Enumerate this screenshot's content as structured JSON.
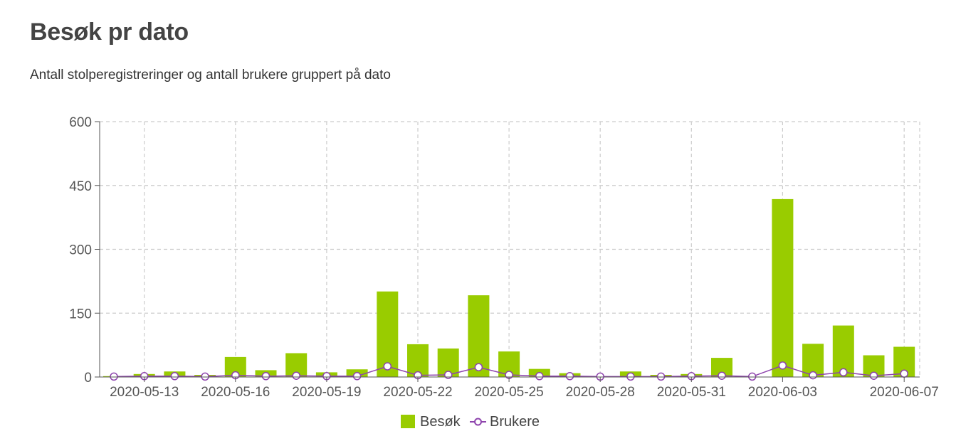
{
  "page": {
    "title": "Besøk pr dato",
    "subtitle": "Antall stolperegistreringer og antall brukere gruppert på dato"
  },
  "chart_data": {
    "type": "bar",
    "title": "Besøk pr dato",
    "subtitle": "Antall stolperegistreringer og antall brukere gruppert på dato",
    "xlabel": "",
    "ylabel": "",
    "ylim": [
      0,
      600
    ],
    "yticks": [
      "0",
      "150",
      "300",
      "450",
      "600"
    ],
    "categories": [
      "2020-05-12",
      "2020-05-13",
      "2020-05-14",
      "2020-05-15",
      "2020-05-16",
      "2020-05-17",
      "2020-05-18",
      "2020-05-19",
      "2020-05-20",
      "2020-05-21",
      "2020-05-22",
      "2020-05-23",
      "2020-05-24",
      "2020-05-25",
      "2020-05-26",
      "2020-05-27",
      "2020-05-28",
      "2020-05-29",
      "2020-05-30",
      "2020-05-31",
      "2020-06-01",
      "2020-06-02",
      "2020-06-03",
      "2020-06-04",
      "2020-06-05",
      "2020-06-06",
      "2020-06-07"
    ],
    "xtick_labels": [
      {
        "category": "2020-05-13",
        "label": "2020-05-13"
      },
      {
        "category": "2020-05-16",
        "label": "2020-05-16"
      },
      {
        "category": "2020-05-19",
        "label": "2020-05-19"
      },
      {
        "category": "2020-05-22",
        "label": "2020-05-22"
      },
      {
        "category": "2020-05-25",
        "label": "2020-05-25"
      },
      {
        "category": "2020-05-28",
        "label": "2020-05-28"
      },
      {
        "category": "2020-05-31",
        "label": "2020-05-31"
      },
      {
        "category": "2020-06-03",
        "label": "2020-06-03"
      },
      {
        "category": "2020-06-07",
        "label": "2020-06-07"
      }
    ],
    "series": [
      {
        "name": "Besøk",
        "kind": "bar",
        "color": "#99cc00",
        "values": [
          2,
          7,
          13,
          5,
          47,
          16,
          56,
          11,
          18,
          201,
          77,
          67,
          192,
          60,
          19,
          9,
          0,
          13,
          5,
          7,
          45,
          0,
          418,
          78,
          121,
          51,
          71
        ]
      },
      {
        "name": "Brukere",
        "kind": "line",
        "color": "#8e44ad",
        "values": [
          1,
          2,
          2,
          1,
          4,
          2,
          3,
          2,
          2,
          25,
          4,
          5,
          23,
          5,
          2,
          2,
          1,
          1,
          1,
          2,
          3,
          1,
          27,
          4,
          11,
          3,
          8
        ]
      }
    ],
    "grid": true,
    "legend_position": "bottom-center"
  }
}
